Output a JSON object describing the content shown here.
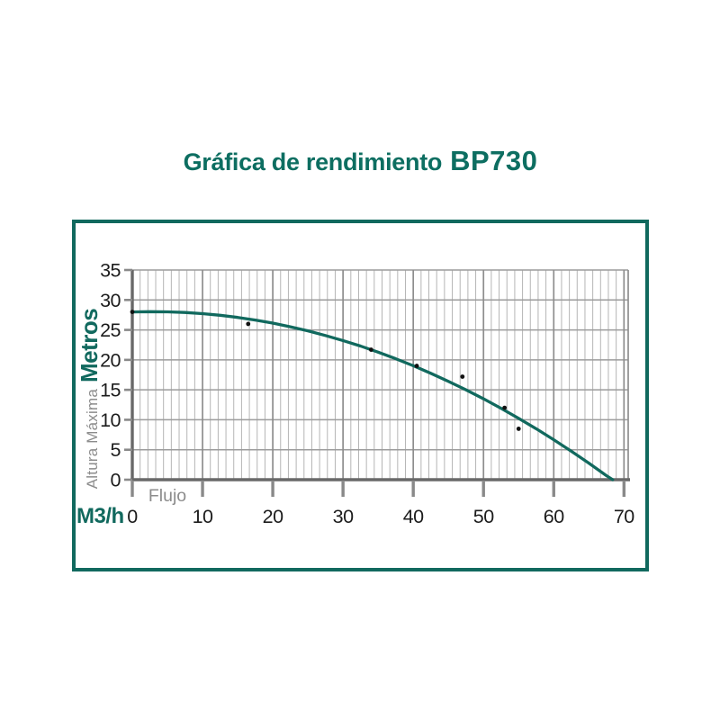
{
  "header": {
    "title_prefix": "Gráfica de rendimiento",
    "title_model": "BP730"
  },
  "colors": {
    "accent_teal": "#11695e",
    "title_teal": "#0d6e61",
    "text_dark": "#1c1c1c",
    "label_gray": "#8c8c8c",
    "grid_minor": "#b5b5b5",
    "grid_major": "#8e8e8e",
    "grid_h": "#9c9c9c",
    "axis_gray": "#696969",
    "tick_gray": "#898989",
    "dot_black": "#111111"
  },
  "chart_data": {
    "type": "line",
    "title": "Gráfica de rendimiento BP730",
    "xlabel": "Flujo",
    "xlabel_unit": "M3/h",
    "ylabel": "Altura Máxima",
    "ylabel_unit": "Metros",
    "xlim": [
      0,
      70.6
    ],
    "ylim": [
      0,
      35
    ],
    "x_ticks": [
      0,
      10,
      20,
      30,
      40,
      50,
      60,
      70
    ],
    "y_ticks": [
      0,
      5,
      10,
      15,
      20,
      25,
      30,
      35
    ],
    "grid": true,
    "x_minor_divisions": 9,
    "legend": "none",
    "series": [
      {
        "name": "curva-rendimiento",
        "type": "line",
        "points": [
          [
            0,
            28
          ],
          [
            2.5,
            28.05
          ],
          [
            5,
            28.02
          ],
          [
            7.5,
            27.91
          ],
          [
            10,
            27.72
          ],
          [
            12.5,
            27.44
          ],
          [
            15,
            27.09
          ],
          [
            17.5,
            26.65
          ],
          [
            20,
            26.13
          ],
          [
            22.5,
            25.52
          ],
          [
            25,
            24.84
          ],
          [
            27.5,
            24.07
          ],
          [
            30,
            23.23
          ],
          [
            32.5,
            22.3
          ],
          [
            35,
            21.28
          ],
          [
            37.5,
            20.19
          ],
          [
            40,
            19.02
          ],
          [
            42.5,
            17.76
          ],
          [
            45,
            16.42
          ],
          [
            47.5,
            15.0
          ],
          [
            50,
            13.5
          ],
          [
            52.5,
            11.91
          ],
          [
            55,
            10.24
          ],
          [
            57.5,
            8.5
          ],
          [
            60,
            6.67
          ],
          [
            62.5,
            4.75
          ],
          [
            65,
            2.76
          ],
          [
            67.5,
            0.68
          ],
          [
            68.4,
            0
          ]
        ]
      },
      {
        "name": "puntos-medidos",
        "type": "scatter",
        "points": [
          [
            0,
            28
          ],
          [
            16.5,
            26
          ],
          [
            34,
            21.7
          ],
          [
            40.5,
            19
          ],
          [
            47,
            17.2
          ],
          [
            53,
            12
          ],
          [
            55,
            8.5
          ]
        ]
      }
    ]
  }
}
